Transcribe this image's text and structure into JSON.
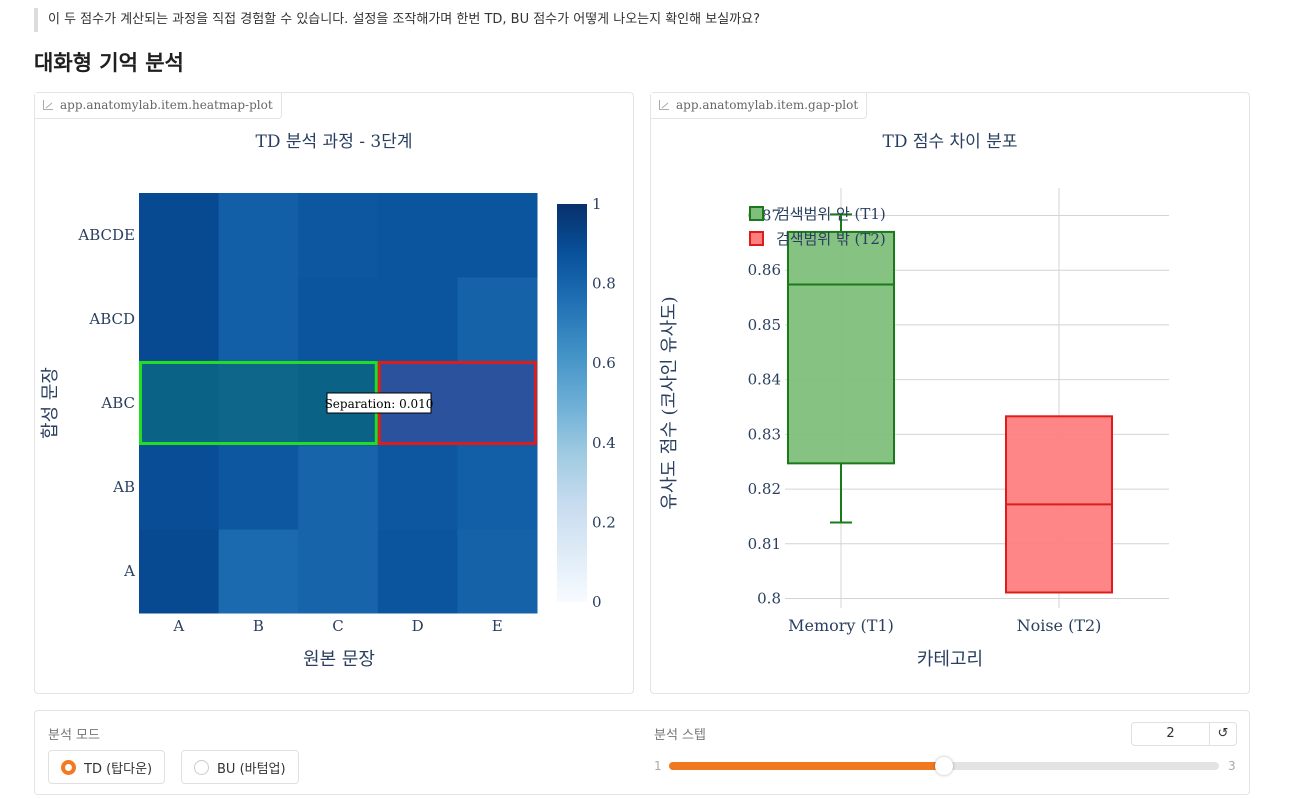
{
  "intro": {
    "text": "이 두 점수가 계산되는 과정을 직접 경험할 수 있습니다. 설정을 조작해가며 한번 TD, BU 점수가 어떻게 나오는지 확인해 보실까요?"
  },
  "section_title": "대화형 기억 분석",
  "heatmap_panel": {
    "tag": "app.anatomylab.item.heatmap-plot",
    "annotation": "Separation: 0.010"
  },
  "gap_panel": {
    "tag": "app.anatomylab.item.gap-plot"
  },
  "controls": {
    "mode_label": "분석 모드",
    "mode_options": [
      {
        "label": "TD (탑다운)",
        "selected": true
      },
      {
        "label": "BU (바텀업)",
        "selected": false
      }
    ],
    "step_label": "분석 스텝",
    "step_value": "2",
    "step_min": "1",
    "step_max": "3",
    "reset_icon": "↺"
  },
  "colors": {
    "accent": "#f07820",
    "green_box": "#1a8a1a",
    "red_box": "#dd1c1c",
    "highlight_green": "#22dd22",
    "highlight_red": "#dd1c1c"
  },
  "chart_data": [
    {
      "type": "heatmap",
      "title": "TD 분석 과정 - 3단계",
      "xlabel": "원본 문장",
      "ylabel": "합성 문장",
      "x": [
        "A",
        "B",
        "C",
        "D",
        "E"
      ],
      "y": [
        "A",
        "AB",
        "ABC",
        "ABCD",
        "ABCDE"
      ],
      "z": [
        [
          0.9,
          0.78,
          0.8,
          0.86,
          0.81
        ],
        [
          0.89,
          0.85,
          0.8,
          0.85,
          0.82
        ],
        [
          0.86,
          0.83,
          0.86,
          0.84,
          0.84
        ],
        [
          0.9,
          0.82,
          0.86,
          0.86,
          0.81
        ],
        [
          0.9,
          0.82,
          0.85,
          0.86,
          0.86
        ]
      ],
      "colorscale": "Blues",
      "colorbar": {
        "range": [
          0,
          1
        ],
        "ticks": [
          "0",
          "0.2",
          "0.4",
          "0.6",
          "0.8",
          "1"
        ]
      },
      "highlights": [
        {
          "row": "ABC",
          "cols": [
            "A",
            "B",
            "C"
          ],
          "color": "#22dd22"
        },
        {
          "row": "ABC",
          "cols": [
            "D",
            "E"
          ],
          "color": "#dd1c1c"
        }
      ],
      "annotation": "Separation: 0.010"
    },
    {
      "type": "box",
      "title": "TD 점수 차이 분포",
      "xlabel": "카테고리",
      "ylabel": "유사도 점수 (코사인 유사도)",
      "categories": [
        "Memory (T1)",
        "Noise (T2)"
      ],
      "ylim": [
        0.798,
        0.873
      ],
      "yticks": [
        "0.8",
        "0.81",
        "0.82",
        "0.83",
        "0.84",
        "0.85",
        "0.86",
        "0.87"
      ],
      "legend": [
        "검색범위 안 (T1)",
        "검색범위 밖 (T2)"
      ],
      "series": [
        {
          "name": "검색범위 안 (T1)",
          "category": "Memory (T1)",
          "lowerfence": 0.8139,
          "q1": 0.8247,
          "median": 0.8574,
          "q3": 0.867,
          "upperfence": 0.8702,
          "color": "#1a8a1a"
        },
        {
          "name": "검색범위 밖 (T2)",
          "category": "Noise (T2)",
          "lowerfence": 0.8011,
          "q1": 0.8011,
          "median": 0.8172,
          "q3": 0.8333,
          "upperfence": 0.8333,
          "color": "#dd1c1c"
        }
      ]
    }
  ]
}
